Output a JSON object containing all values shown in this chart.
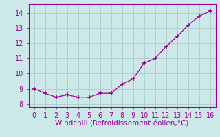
{
  "x": [
    0,
    1,
    2,
    3,
    4,
    5,
    6,
    7,
    8,
    9,
    10,
    11,
    12,
    13,
    14,
    15,
    16
  ],
  "y": [
    9.0,
    8.7,
    8.45,
    8.6,
    8.45,
    8.45,
    8.7,
    8.7,
    9.3,
    9.65,
    10.7,
    11.0,
    11.8,
    12.45,
    13.2,
    13.8,
    14.15
  ],
  "line_color": "#990099",
  "marker": "+",
  "marker_size": 5,
  "marker_lw": 1.2,
  "xlabel": "Windchill (Refroidissement éolien,°C)",
  "xlim": [
    -0.5,
    16.5
  ],
  "ylim": [
    7.8,
    14.6
  ],
  "yticks": [
    8,
    9,
    10,
    11,
    12,
    13,
    14
  ],
  "xticks": [
    0,
    1,
    2,
    3,
    4,
    5,
    6,
    7,
    8,
    9,
    10,
    11,
    12,
    13,
    14,
    15,
    16
  ],
  "bg_color": "#cce8e8",
  "grid_color": "#b0d0d0",
  "tick_color": "#990099",
  "label_color": "#990099",
  "spine_color": "#990099",
  "tick_fontsize": 7,
  "xlabel_fontsize": 7.5,
  "line_style": "-",
  "line_width": 0.9
}
